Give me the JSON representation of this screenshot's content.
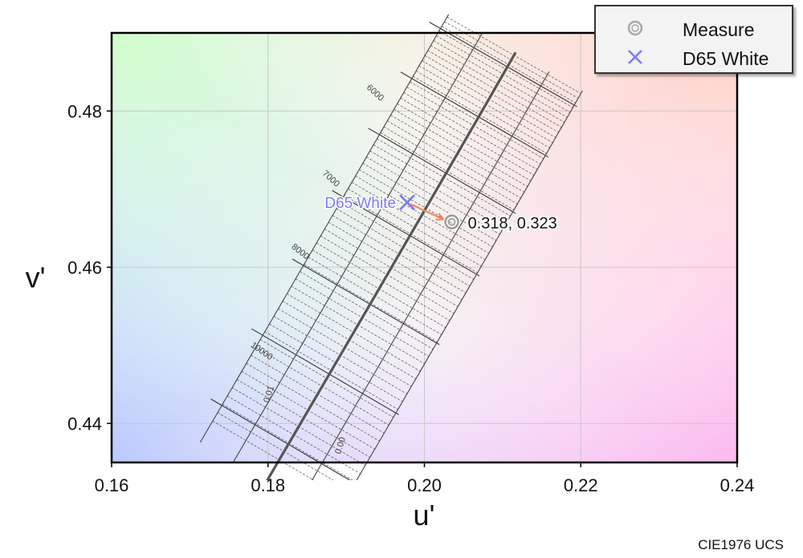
{
  "chart_data": {
    "type": "scatter",
    "xlabel": "u'",
    "ylabel": "v'",
    "xlim": [
      0.16,
      0.24
    ],
    "ylim": [
      0.435,
      0.49
    ],
    "x_ticks": [
      "0.16",
      "0.18",
      "0.20",
      "0.22",
      "0.24"
    ],
    "y_ticks": [
      "0.44",
      "0.46",
      "0.48"
    ],
    "grid": true,
    "legend_position": "top-right",
    "series": [
      {
        "name": "Measure",
        "marker": "ring",
        "color": "#999999",
        "points": [
          {
            "x": 0.2035,
            "y": 0.4658
          }
        ]
      },
      {
        "name": "D65 White",
        "marker": "x",
        "color": "#7b7bf0",
        "points": [
          {
            "x": 0.1978,
            "y": 0.4683
          }
        ]
      }
    ],
    "annotations": {
      "measure_label": "0.318,  0.323",
      "d65_label": "D65 White"
    },
    "cct_labels": [
      "6000",
      "7000",
      "8000",
      "10000"
    ],
    "duv_labels": [
      "0.01",
      "0.00"
    ],
    "footer": "CIE1976 UCS"
  },
  "legend": {
    "items": [
      {
        "label": "Measure"
      },
      {
        "label": "D65 White"
      }
    ]
  },
  "colors": {
    "measure": "#999999",
    "d65": "#7b7bf0",
    "arrow": "#f08a55",
    "grid": "#c8c8c8",
    "locus": "#555555"
  }
}
